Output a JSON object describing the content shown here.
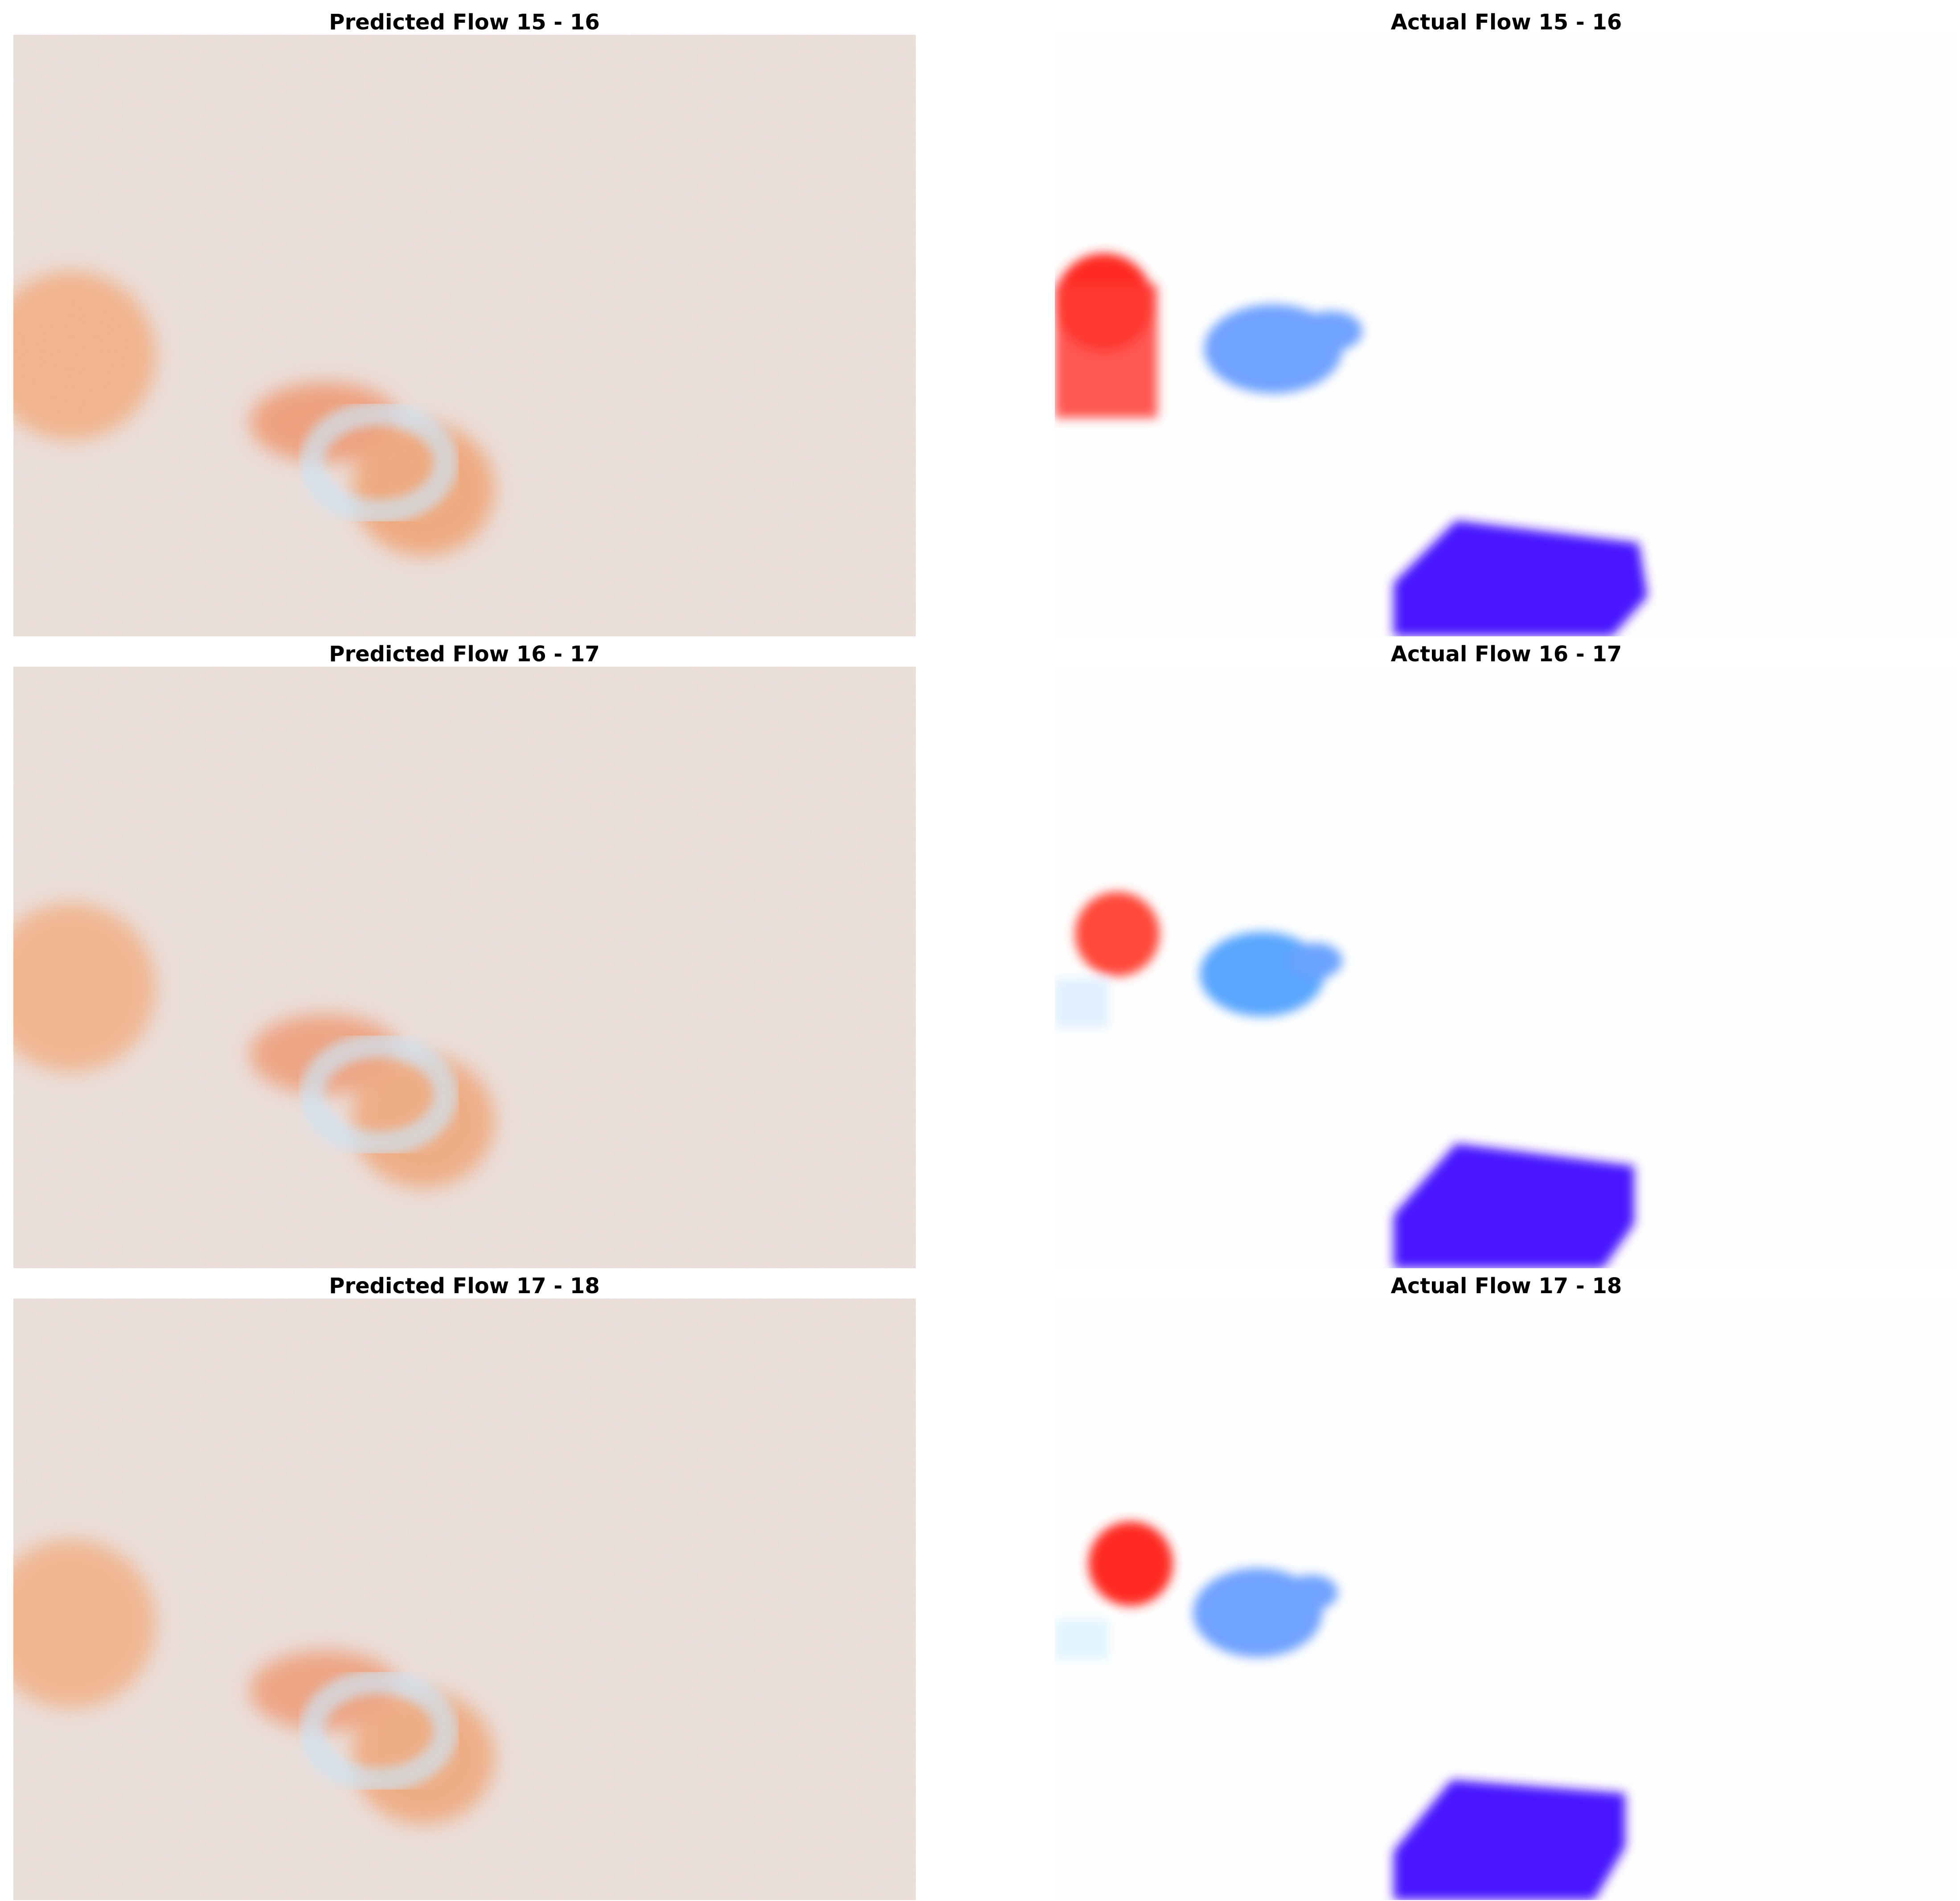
{
  "figure": {
    "rows": [
      {
        "predicted_title": "Predicted Flow 15 - 16",
        "actual_title": "Actual Flow 15 - 16"
      },
      {
        "predicted_title": "Predicted Flow 16 - 17",
        "actual_title": "Actual Flow 16 - 17"
      },
      {
        "predicted_title": "Predicted Flow 17 - 18",
        "actual_title": "Actual Flow 17 - 18"
      }
    ]
  },
  "colors": {
    "predicted_background": "#f7e6d6",
    "predicted_blob": "#f3a673",
    "predicted_ring": "#d6e6f2",
    "actual_background": "#fefefe",
    "red_object": "#ff2a22",
    "light_blue_object": "#6fa2ff",
    "violet_object": "#4a12ff"
  }
}
